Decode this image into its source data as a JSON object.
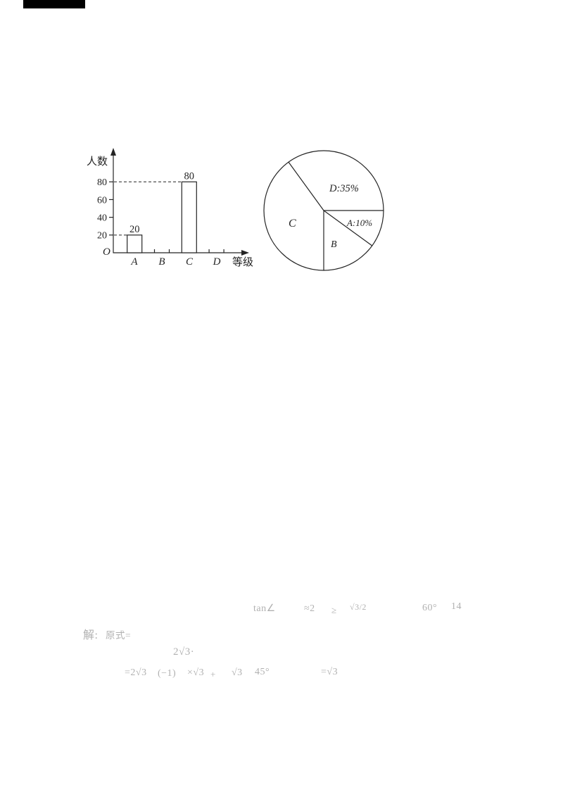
{
  "page": {
    "background": "#ffffff",
    "ink_color": "#242424",
    "top_bar_color": "#000000",
    "faint_text_color": "rgba(20,20,20,0.34)"
  },
  "figure": {
    "bar_chart": {
      "y_axis_label": "人数",
      "x_axis_label": "等级",
      "origin_label": "O",
      "y_tick_labels": [
        "20",
        "40",
        "60",
        "80"
      ],
      "category_labels": [
        "A",
        "B",
        "C",
        "D"
      ],
      "bar_value_labels": {
        "A": "20",
        "C": "80"
      }
    },
    "pie_chart": {
      "slice_label_d": "D:35%",
      "slice_label_a": "A:10%",
      "slice_label_b": "B",
      "slice_label_c": "C"
    }
  },
  "chart_data": [
    {
      "type": "bar",
      "title": "",
      "xlabel": "等级",
      "ylabel": "人数",
      "categories": [
        "A",
        "B",
        "C",
        "D"
      ],
      "values": [
        20,
        null,
        80,
        null
      ],
      "yticks": [
        20,
        40,
        60,
        80
      ],
      "ylim": [
        0,
        100
      ],
      "grid": false,
      "annotations": [
        "20 above bar A",
        "80 above bar C"
      ],
      "dashed_guides_at": [
        20,
        80
      ],
      "note": "Bars for B and D are not drawn (empty tick slots only)"
    },
    {
      "type": "pie",
      "title": "",
      "labels": [
        "A",
        "B",
        "C",
        "D"
      ],
      "values_percent": [
        10,
        15,
        40,
        35
      ],
      "printed_slice_labels": [
        "A:10%",
        "B",
        "C",
        "D:35%"
      ],
      "start_angle_deg": 0,
      "direction": "clockwise",
      "note": "A starts at east horizontal; B percent not printed on chart (geometry = 54°)"
    }
  ],
  "faint_text": {
    "f1": "tan∠",
    "f2": "≈2",
    "f3": "≥",
    "f4": "√3/2",
    "f5": "60°",
    "f6": "14",
    "f7": "解:",
    "f8": "原式=",
    "f9": "2√3·",
    "f10": "=2√3",
    "f11": "(−1)",
    "f12": "×√3",
    "f13": "+",
    "f14": "√3",
    "f15": "45°",
    "f16": "=√3"
  }
}
